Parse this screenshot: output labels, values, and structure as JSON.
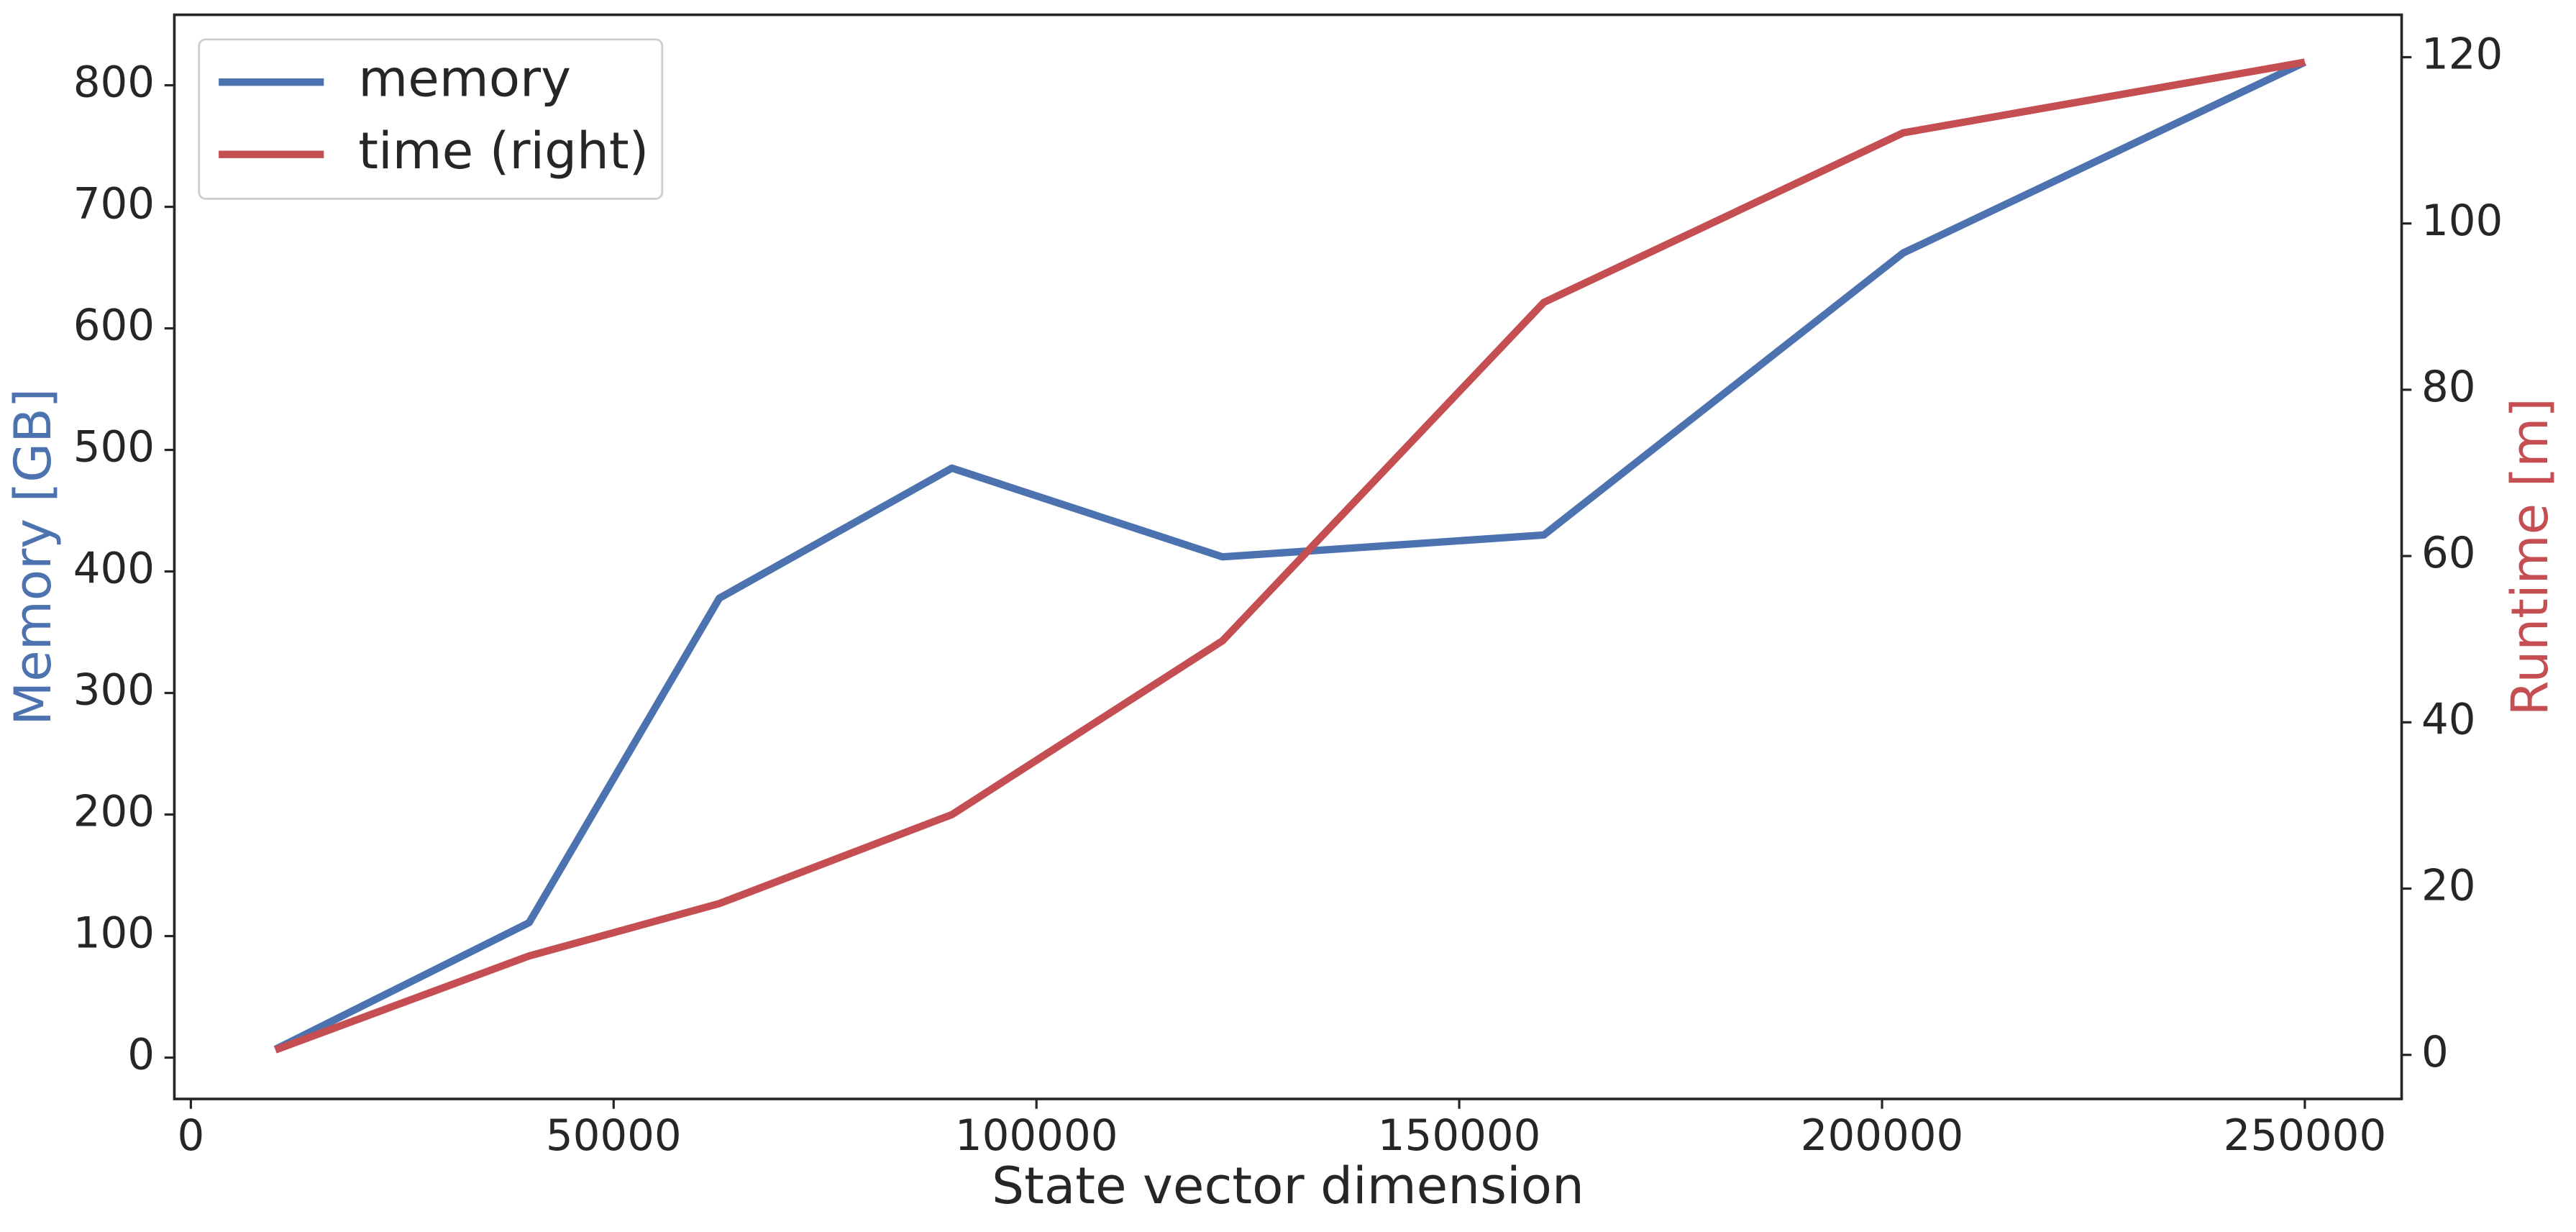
{
  "chart_data": {
    "type": "line",
    "x": [
      10000,
      40000,
      62500,
      90000,
      122000,
      160000,
      202500,
      250000
    ],
    "series": [
      {
        "name": "memory",
        "color": "#4c72b0",
        "values": [
          6.8,
          111,
          378,
          485,
          412,
          430,
          662,
          819
        ]
      },
      {
        "name": "time (right)",
        "color": "#c44e52",
        "axis": "y2",
        "values": [
          0.6,
          11.9,
          18.2,
          28.9,
          49.8,
          90.5,
          110.9,
          119.4
        ]
      }
    ],
    "xlabel": "State vector dimension",
    "ylabel": "Memory [GB]",
    "ylabel_color": "#4c72b0",
    "y2label": "Runtime [m]",
    "y2label_color": "#c44e52",
    "xlim": [
      -1950,
      261450
    ],
    "xticks": [
      0,
      50000,
      100000,
      150000,
      200000,
      250000
    ],
    "ylim": [
      -34,
      858
    ],
    "yticks": [
      0,
      100,
      200,
      300,
      400,
      500,
      600,
      700,
      800
    ],
    "y2lim": [
      -5.3,
      125.1
    ],
    "y2ticks": [
      0,
      20,
      40,
      60,
      80,
      100,
      120
    ],
    "grid": false,
    "legend": "upper left"
  }
}
